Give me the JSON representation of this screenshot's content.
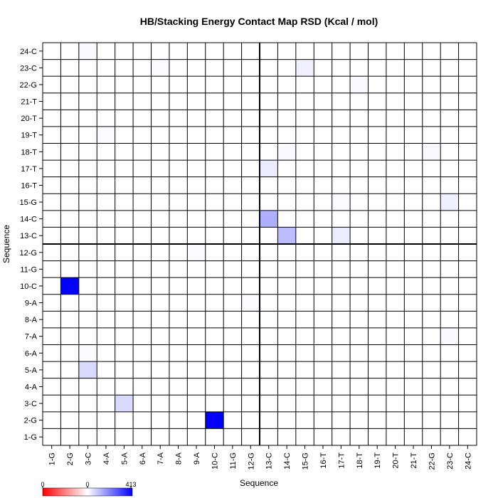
{
  "chart_data": {
    "type": "heatmap",
    "title": "HB/Stacking Energy Contact Map RSD (Kcal / mol)",
    "xlabel": "Sequence",
    "ylabel": "Sequence",
    "x": [
      "1-G",
      "2-G",
      "3-C",
      "4-A",
      "5-A",
      "6-A",
      "7-A",
      "8-A",
      "9-A",
      "10-C",
      "11-G",
      "12-G",
      "13-C",
      "14-C",
      "15-G",
      "16-T",
      "17-T",
      "18-T",
      "19-T",
      "20-T",
      "21-T",
      "22-G",
      "23-C",
      "24-C"
    ],
    "y": [
      "1-G",
      "2-G",
      "3-C",
      "4-A",
      "5-A",
      "6-A",
      "7-A",
      "8-A",
      "9-A",
      "10-C",
      "11-G",
      "12-G",
      "13-C",
      "14-C",
      "15-G",
      "16-T",
      "17-T",
      "18-T",
      "19-T",
      "20-T",
      "21-T",
      "22-G",
      "23-C",
      "24-C"
    ],
    "cells": [
      {
        "x": "2-G",
        "y": "10-C",
        "value": 413
      },
      {
        "x": "10-C",
        "y": "2-G",
        "value": 413
      },
      {
        "x": "13-C",
        "y": "14-C",
        "value": 130
      },
      {
        "x": "14-C",
        "y": "13-C",
        "value": 110
      },
      {
        "x": "5-A",
        "y": "3-C",
        "value": 60
      },
      {
        "x": "3-C",
        "y": "5-A",
        "value": 60
      },
      {
        "x": "13-C",
        "y": "17-T",
        "value": 30
      },
      {
        "x": "17-T",
        "y": "13-C",
        "value": 30
      },
      {
        "x": "15-G",
        "y": "23-C",
        "value": 25
      },
      {
        "x": "23-C",
        "y": "15-G",
        "value": 25
      },
      {
        "x": "3-C",
        "y": "24-C",
        "value": 10
      },
      {
        "x": "18-T",
        "y": "22-G",
        "value": 10
      },
      {
        "x": "22-G",
        "y": "18-T",
        "value": 12
      },
      {
        "x": "14-C",
        "y": "18-T",
        "value": 10
      },
      {
        "x": "7-A",
        "y": "23-C",
        "value": 8
      },
      {
        "x": "9-A",
        "y": "12-G",
        "value": 8
      },
      {
        "x": "12-G",
        "y": "9-A",
        "value": 8
      },
      {
        "x": "23-C",
        "y": "7-A",
        "value": 10
      },
      {
        "x": "3-C",
        "y": "6-A",
        "value": 6
      },
      {
        "x": "4-A",
        "y": "19-T",
        "value": 6
      },
      {
        "x": "17-T",
        "y": "15-G",
        "value": 6
      }
    ],
    "colorbar": {
      "ticks": [
        "0",
        "0",
        "413"
      ],
      "colors": [
        "#ff0000",
        "#ffffff",
        "#0000ff"
      ]
    },
    "grid": true,
    "divider_after": "12-G"
  }
}
